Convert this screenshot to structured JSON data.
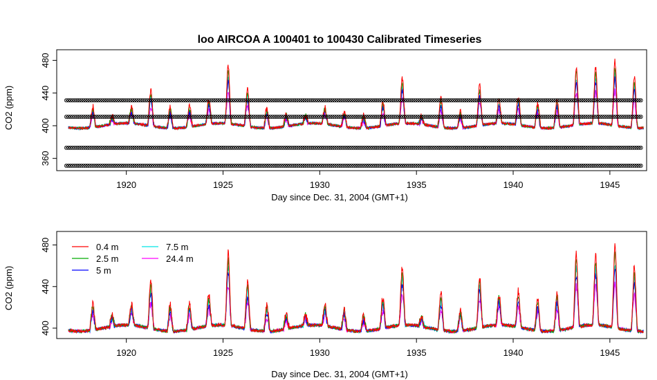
{
  "chart_data": [
    {
      "type": "line",
      "title": "loo   AIRCOA  A    100401  to  100430   Calibrated Timeseries",
      "xlabel": "Day since Dec. 31, 2004 (GMT+1)",
      "ylabel": "CO2 (ppm)",
      "xlim": [
        1916.4,
        1946.9
      ],
      "ylim": [
        345,
        493
      ],
      "x_ticks": [
        1920,
        1925,
        1930,
        1935,
        1940,
        1945
      ],
      "y_ticks": [
        360,
        400,
        440,
        480
      ],
      "reference_levels": [
        351,
        373,
        411,
        431
      ],
      "reference_style": "circle-cross markers",
      "series_colors": [
        "#ff0000",
        "#00aa00",
        "#0000ff",
        "#00e5e5",
        "#ff00ff"
      ],
      "daily_peak_mid": [
        {
          "day": 1918,
          "peak": 425
        },
        {
          "day": 1919,
          "peak": 410
        },
        {
          "day": 1920,
          "peak": 420
        },
        {
          "day": 1921,
          "peak": 445
        },
        {
          "day": 1922,
          "peak": 425
        },
        {
          "day": 1923,
          "peak": 425
        },
        {
          "day": 1924,
          "peak": 430
        },
        {
          "day": 1925,
          "peak": 470
        },
        {
          "day": 1926,
          "peak": 445
        },
        {
          "day": 1927,
          "peak": 425
        },
        {
          "day": 1928,
          "peak": 415
        },
        {
          "day": 1929,
          "peak": 410
        },
        {
          "day": 1930,
          "peak": 420
        },
        {
          "day": 1931,
          "peak": 420
        },
        {
          "day": 1932,
          "peak": 415
        },
        {
          "day": 1933,
          "peak": 430
        },
        {
          "day": 1934,
          "peak": 455
        },
        {
          "day": 1935,
          "peak": 410
        },
        {
          "day": 1936,
          "peak": 435
        },
        {
          "day": 1937,
          "peak": 420
        },
        {
          "day": 1938,
          "peak": 448
        },
        {
          "day": 1939,
          "peak": 430
        },
        {
          "day": 1940,
          "peak": 435
        },
        {
          "day": 1941,
          "peak": 430
        },
        {
          "day": 1942,
          "peak": 435
        },
        {
          "day": 1943,
          "peak": 470
        },
        {
          "day": 1944,
          "peak": 468
        },
        {
          "day": 1945,
          "peak": 478
        },
        {
          "day": 1946,
          "peak": 462
        }
      ]
    },
    {
      "type": "line",
      "xlabel": "Day since Dec. 31, 2004 (GMT+1)",
      "ylabel": "CO2 (ppm)",
      "xlim": [
        1916.4,
        1946.9
      ],
      "ylim": [
        390,
        493
      ],
      "x_ticks": [
        1920,
        1925,
        1930,
        1935,
        1940,
        1945
      ],
      "y_ticks": [
        400,
        440,
        480
      ],
      "legend_position": "top-left",
      "series": [
        {
          "name": "0.4 m",
          "color": "#ff0000"
        },
        {
          "name": "2.5 m",
          "color": "#00aa00"
        },
        {
          "name": "5 m",
          "color": "#0000ff"
        },
        {
          "name": "7.5 m",
          "color": "#00e5e5"
        },
        {
          "name": "24.4 m",
          "color": "#ff00ff"
        }
      ]
    }
  ]
}
